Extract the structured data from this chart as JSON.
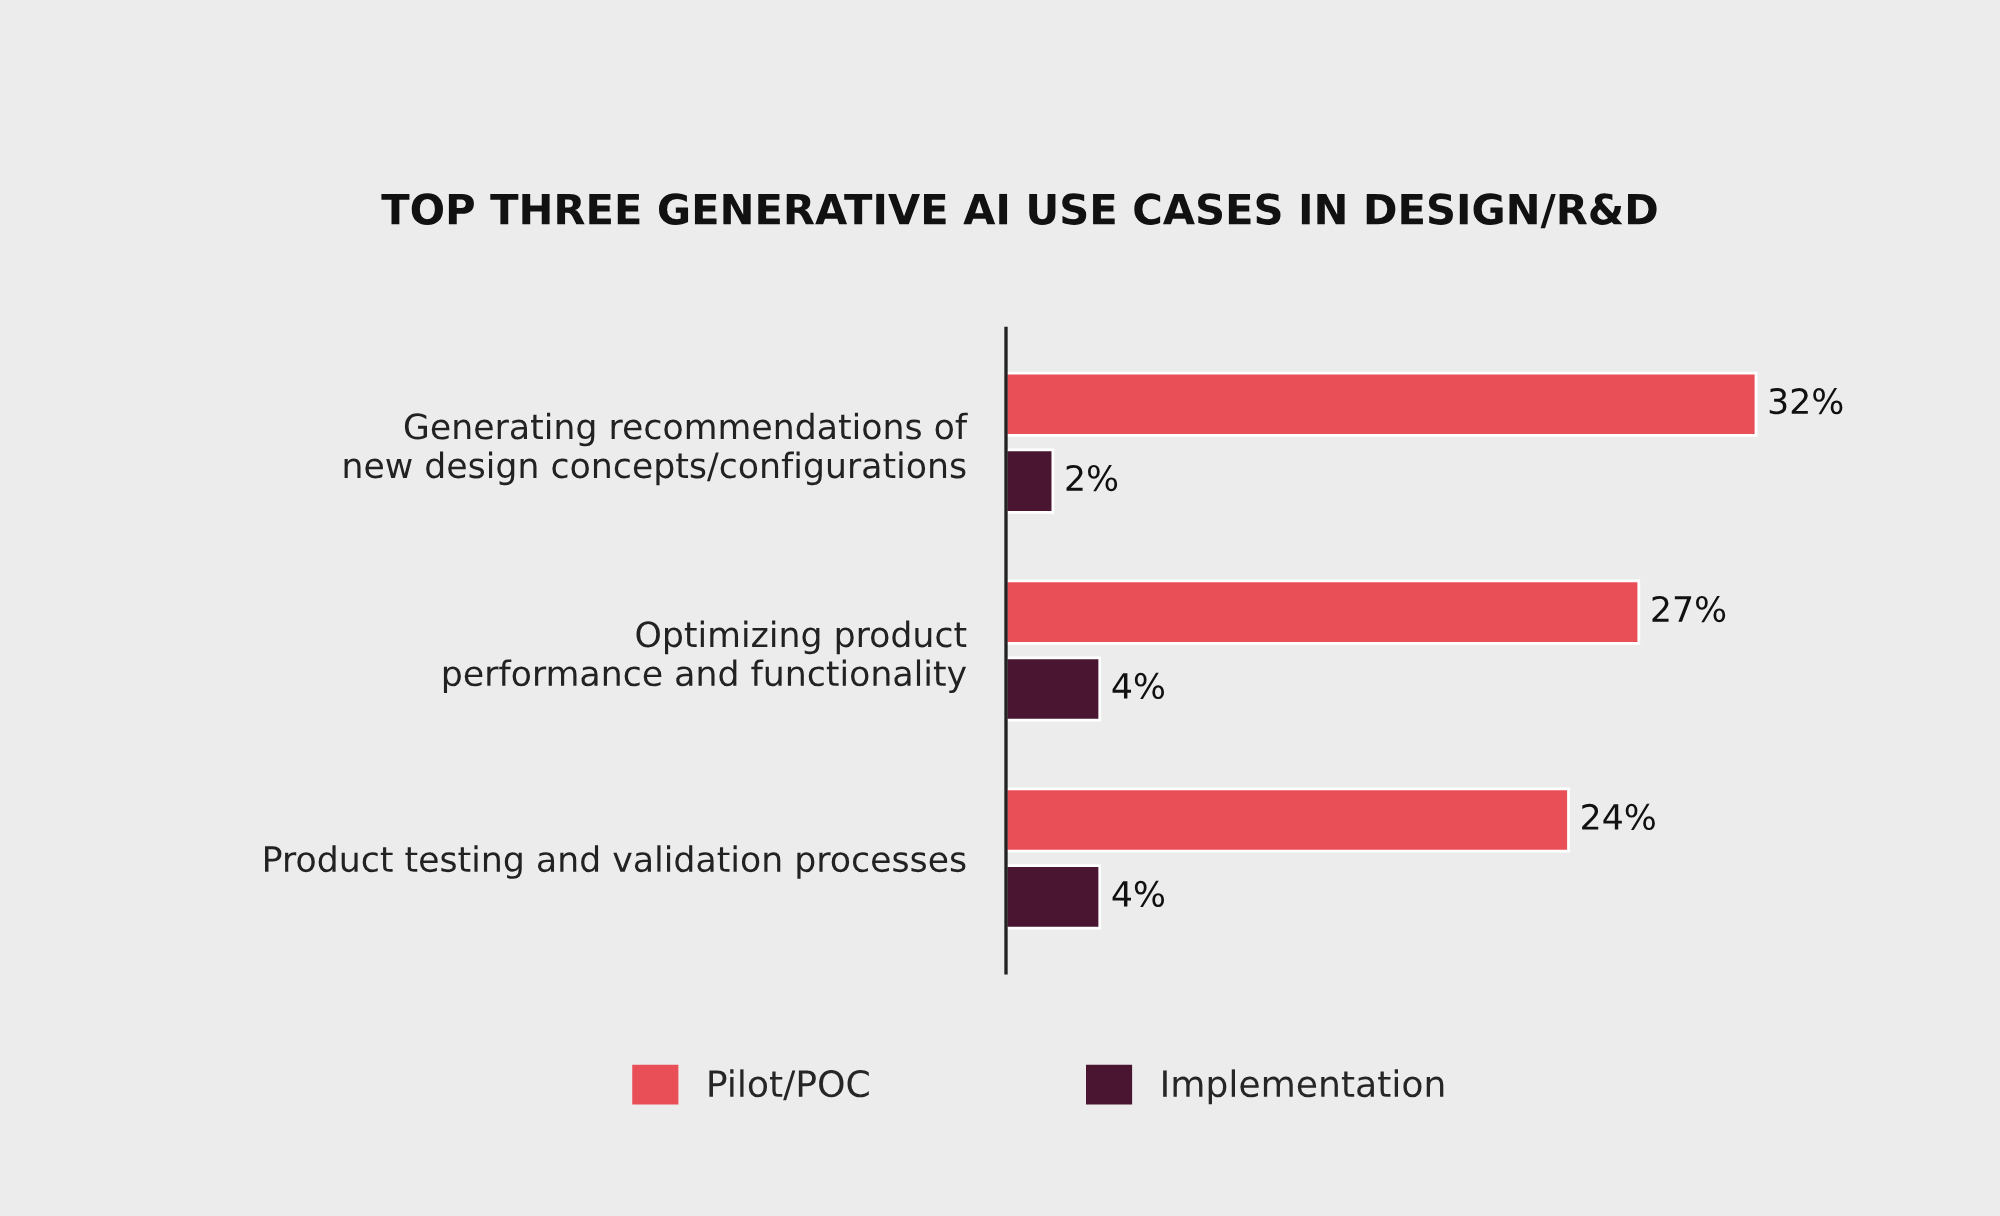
{
  "chart_data": {
    "type": "bar",
    "orientation": "horizontal",
    "title": "TOP THREE GENERATIVE AI USE CASES IN DESIGN/R&D",
    "categories": [
      "Generating recommendations of\nnew design concepts/configurations",
      "Optimizing product\nperformance and functionality",
      "Product testing and validation processes"
    ],
    "series": [
      {
        "name": "Pilot/POC",
        "color": "#e94f57",
        "values": [
          32,
          27,
          24
        ],
        "value_labels": [
          "32%",
          "27%",
          "24%"
        ]
      },
      {
        "name": "Implementation",
        "color": "#4a1530",
        "values": [
          2,
          4,
          4
        ],
        "value_labels": [
          "2%",
          "4%",
          "4%"
        ]
      }
    ],
    "legend": "bottom",
    "grid": false
  }
}
